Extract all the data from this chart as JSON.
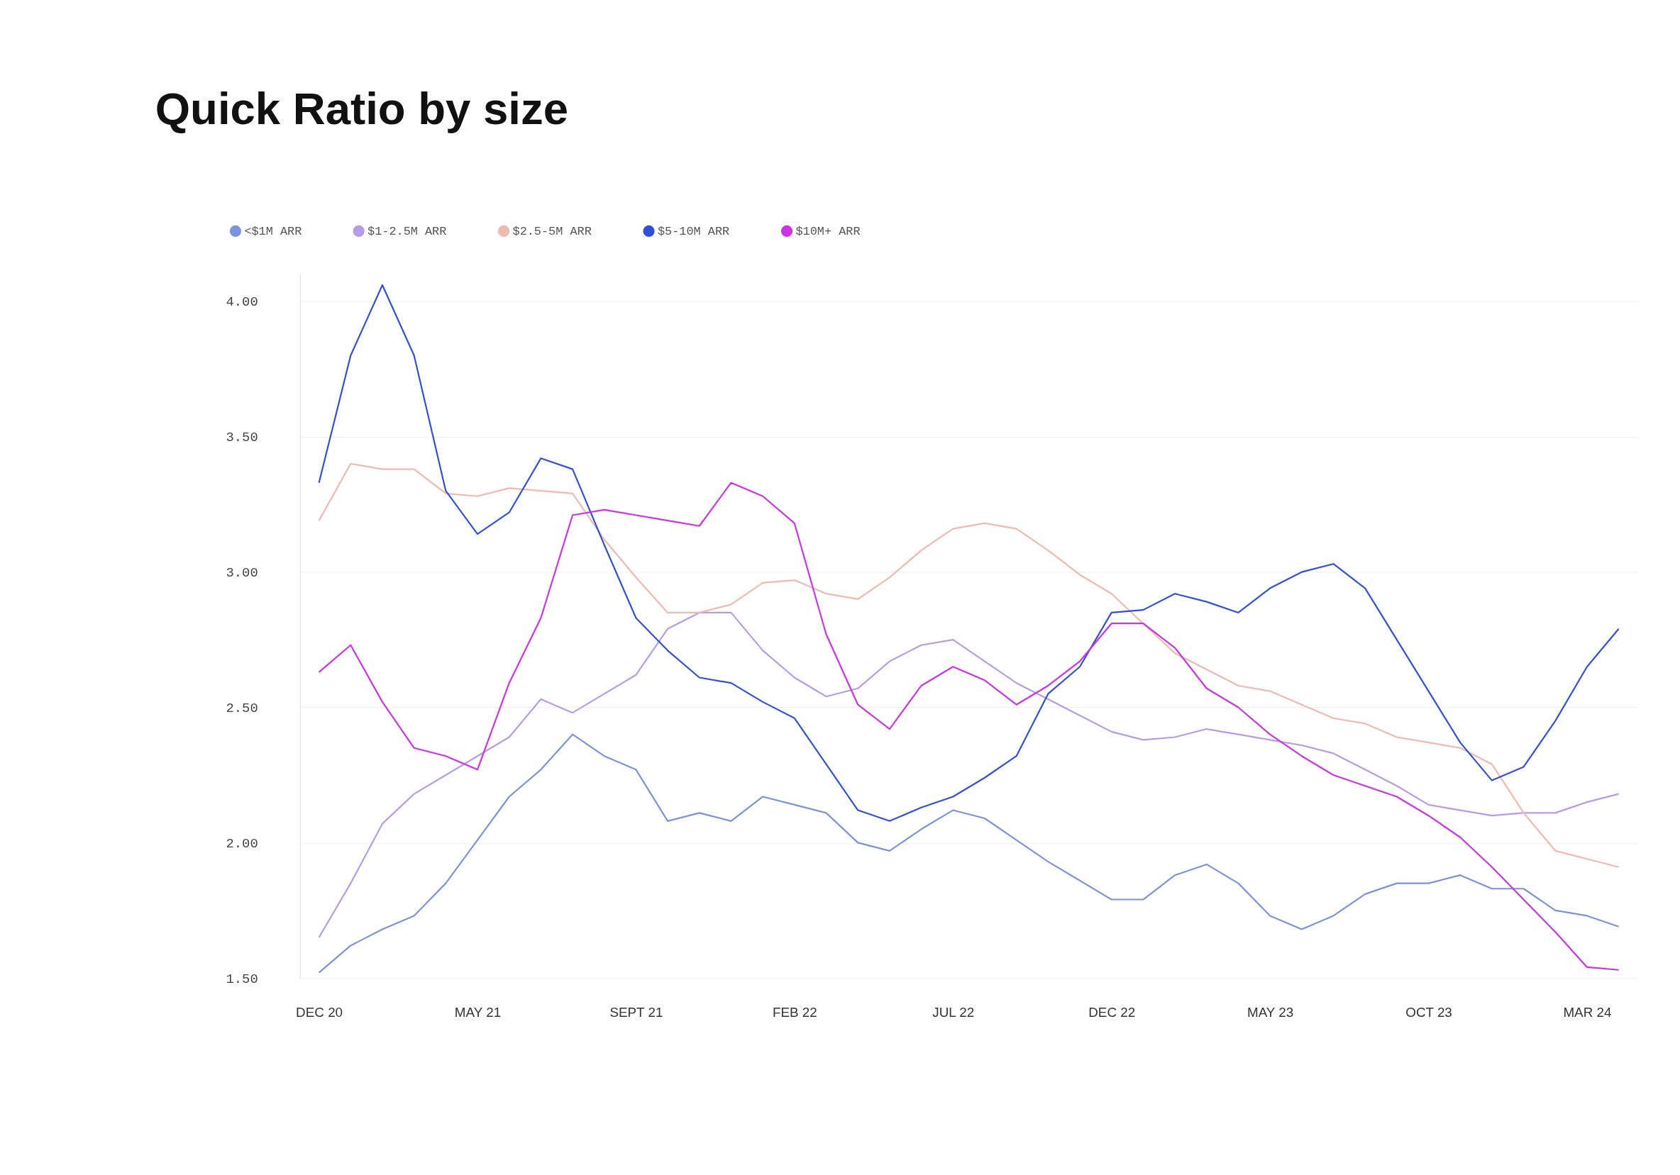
{
  "chart_data": {
    "type": "line",
    "title": "Quick Ratio by size",
    "categories": [
      "DEC 20",
      null,
      null,
      null,
      null,
      "MAY 21",
      null,
      null,
      null,
      null,
      "SEPT 21",
      null,
      null,
      null,
      null,
      "FEB 22",
      null,
      null,
      null,
      null,
      "JUL 22",
      null,
      null,
      null,
      null,
      "DEC 22",
      null,
      null,
      null,
      null,
      "MAY 23",
      null,
      null,
      null,
      null,
      "OCT 23",
      null,
      null,
      null,
      null,
      "MAR 24",
      null
    ],
    "series": [
      {
        "name": "<$1M ARR",
        "color": "#7b93dd",
        "values": [
          1.52,
          1.62,
          1.68,
          1.73,
          1.85,
          2.01,
          2.17,
          2.27,
          2.4,
          2.32,
          2.27,
          2.08,
          2.11,
          2.08,
          2.17,
          2.14,
          2.11,
          2.0,
          1.97,
          2.05,
          2.12,
          2.09,
          2.01,
          1.93,
          1.86,
          1.79,
          1.79,
          1.88,
          1.92,
          1.85,
          1.73,
          1.68,
          1.73,
          1.81,
          1.85,
          1.85,
          1.88,
          1.83,
          1.83,
          1.75,
          1.73,
          1.69
        ]
      },
      {
        "name": "$1-2.5M ARR",
        "color": "#b89be8",
        "values": [
          1.65,
          1.85,
          2.07,
          2.18,
          2.25,
          2.32,
          2.39,
          2.53,
          2.48,
          2.55,
          2.62,
          2.79,
          2.85,
          2.85,
          2.71,
          2.61,
          2.54,
          2.57,
          2.67,
          2.73,
          2.75,
          2.67,
          2.59,
          2.53,
          2.47,
          2.41,
          2.38,
          2.39,
          2.42,
          2.4,
          2.38,
          2.36,
          2.33,
          2.27,
          2.21,
          2.14,
          2.12,
          2.1,
          2.11,
          2.11,
          2.15,
          2.18
        ]
      },
      {
        "name": "$2.5-5M ARR",
        "color": "#f1b8ae",
        "values": [
          3.19,
          3.4,
          3.38,
          3.38,
          3.29,
          3.28,
          3.31,
          3.3,
          3.29,
          3.12,
          2.98,
          2.85,
          2.85,
          2.88,
          2.96,
          2.97,
          2.92,
          2.9,
          2.98,
          3.08,
          3.16,
          3.18,
          3.16,
          3.08,
          2.99,
          2.92,
          2.81,
          2.7,
          2.64,
          2.58,
          2.56,
          2.51,
          2.46,
          2.44,
          2.39,
          2.37,
          2.35,
          2.29,
          2.11,
          1.97,
          1.94,
          1.91
        ]
      },
      {
        "name": "$5-10M ARR",
        "color": "#3050d8",
        "values": [
          3.33,
          3.8,
          4.06,
          3.8,
          3.3,
          3.14,
          3.22,
          3.42,
          3.38,
          3.1,
          2.83,
          2.71,
          2.61,
          2.59,
          2.52,
          2.46,
          2.29,
          2.12,
          2.08,
          2.13,
          2.17,
          2.24,
          2.32,
          2.55,
          2.65,
          2.85,
          2.86,
          2.92,
          2.89,
          2.85,
          2.94,
          3.0,
          3.03,
          2.94,
          2.75,
          2.56,
          2.37,
          2.23,
          2.28,
          2.45,
          2.65,
          2.79
        ]
      },
      {
        "name": "$10M+ ARR",
        "color": "#cc33e6",
        "values": [
          2.63,
          2.73,
          2.52,
          2.35,
          2.32,
          2.27,
          2.59,
          2.83,
          3.21,
          3.23,
          3.21,
          3.19,
          3.17,
          3.33,
          3.28,
          3.18,
          2.77,
          2.51,
          2.42,
          2.58,
          2.65,
          2.6,
          2.51,
          2.58,
          2.67,
          2.81,
          2.81,
          2.72,
          2.57,
          2.5,
          2.4,
          2.32,
          2.25,
          2.21,
          2.17,
          2.1,
          2.02,
          1.91,
          1.79,
          1.67,
          1.54,
          1.53
        ]
      }
    ],
    "ylim": [
      1.5,
      4.1
    ],
    "yticks": [
      {
        "value": 1.5,
        "label": "1.50"
      },
      {
        "value": 2.0,
        "label": "2.00"
      },
      {
        "value": 2.5,
        "label": "2.50"
      },
      {
        "value": 3.0,
        "label": "3.00"
      },
      {
        "value": 3.5,
        "label": "3.50"
      },
      {
        "value": 4.0,
        "label": "4.00"
      }
    ],
    "grid": "y",
    "legend": "top left",
    "marker": "none",
    "line_style": "solid"
  }
}
